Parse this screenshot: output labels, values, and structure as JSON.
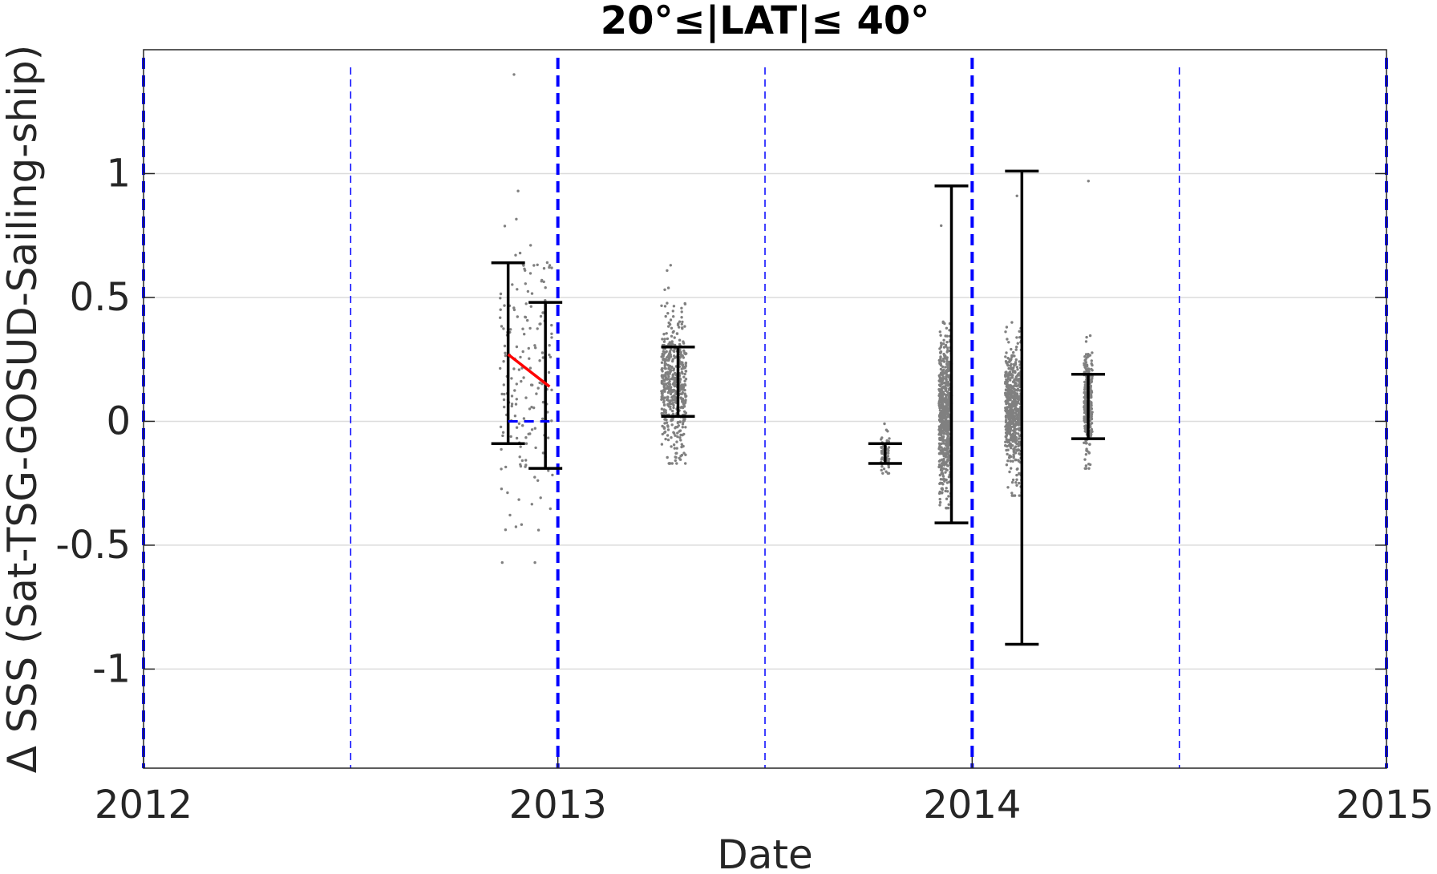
{
  "chart_data": {
    "type": "scatter",
    "title": "20°≤|LAT|≤ 40°",
    "xlabel": "Date",
    "ylabel": "Δ SSS (Sat-TSG-GOSUD-Sailing-ship)",
    "xlim": [
      2012.0,
      2015.0
    ],
    "ylim": [
      -1.4,
      1.5
    ],
    "xticks": [
      2012,
      2013,
      2014,
      2015
    ],
    "xtick_labels": [
      "2012",
      "2013",
      "2014",
      "2015"
    ],
    "yticks": [
      -1,
      -0.5,
      0,
      0.5,
      1
    ],
    "ytick_labels": [
      "-1",
      "-0.5",
      "0",
      "0.5",
      "1"
    ],
    "grid": "horizontal",
    "year_lines": [
      2012.0,
      2013.0,
      2014.0,
      2015.0
    ],
    "half_year_lines": [
      2012.5,
      2013.5,
      2014.5
    ],
    "colors": {
      "points": "#808080",
      "errorbars": "#000000",
      "trend": "#ff0000",
      "reference": "#0000ff",
      "grid": "#dcdcdc"
    },
    "errorbars": [
      {
        "x": 2012.88,
        "low": -0.09,
        "high": 0.64
      },
      {
        "x": 2012.97,
        "low": -0.19,
        "high": 0.48
      },
      {
        "x": 2013.29,
        "low": 0.02,
        "high": 0.3
      },
      {
        "x": 2013.79,
        "low": -0.17,
        "high": -0.09
      },
      {
        "x": 2013.95,
        "low": -0.41,
        "high": 0.95
      },
      {
        "x": 2014.12,
        "low": -0.9,
        "high": 1.01
      },
      {
        "x": 2014.28,
        "low": -0.07,
        "high": 0.19
      }
    ],
    "trend_line": {
      "x": [
        2012.88,
        2012.98
      ],
      "y": [
        0.27,
        0.14
      ]
    },
    "zero_reference": {
      "x": [
        2012.88,
        2012.98
      ],
      "y": [
        0.0,
        0.0
      ]
    },
    "point_clusters": [
      {
        "x_range": [
          2012.86,
          2012.99
        ],
        "y_min": -0.57,
        "y_max": 1.4,
        "center": 0.18,
        "spread": 0.3,
        "count": 180
      },
      {
        "x_range": [
          2013.25,
          2013.31
        ],
        "y_min": -0.17,
        "y_max": 0.63,
        "center": 0.15,
        "spread": 0.14,
        "count": 500
      },
      {
        "x_range": [
          2013.78,
          2013.8
        ],
        "y_min": -0.21,
        "y_max": -0.01,
        "center": -0.13,
        "spread": 0.04,
        "count": 60
      },
      {
        "x_range": [
          2013.92,
          2013.95
        ],
        "y_min": -0.35,
        "y_max": 0.79,
        "center": 0.02,
        "spread": 0.16,
        "count": 600
      },
      {
        "x_range": [
          2014.08,
          2014.12
        ],
        "y_min": -0.3,
        "y_max": 0.91,
        "center": 0.05,
        "spread": 0.12,
        "count": 600
      },
      {
        "x_range": [
          2014.27,
          2014.29
        ],
        "y_min": -0.19,
        "y_max": 0.97,
        "center": 0.06,
        "spread": 0.1,
        "count": 300
      }
    ]
  }
}
